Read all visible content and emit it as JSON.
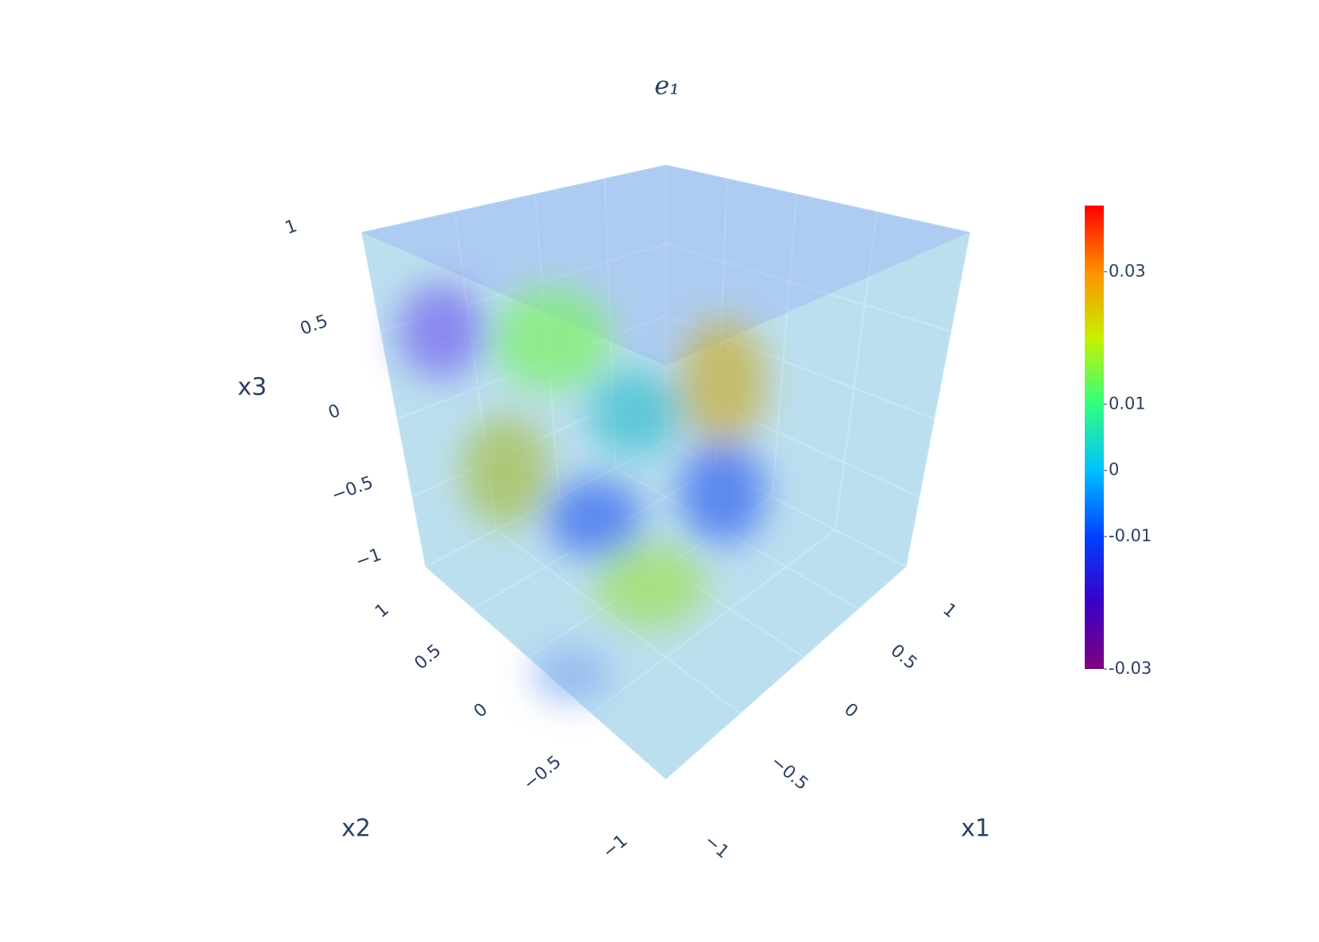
{
  "chart_data": {
    "type": "volume",
    "title": "e₁",
    "xaxis_title": "x1",
    "yaxis_title": "x2",
    "zaxis_title": "x3",
    "xlim": [
      -1,
      1
    ],
    "ylim": [
      -1,
      1
    ],
    "zlim": [
      -1,
      1
    ],
    "xticks": [
      {
        "value": -1,
        "label": "−1"
      },
      {
        "value": -0.5,
        "label": "−0.5"
      },
      0,
      0.5,
      1
    ],
    "yticks": [
      {
        "value": -1,
        "label": "−1"
      },
      {
        "value": -0.5,
        "label": "−0.5"
      },
      0,
      0.5,
      1
    ],
    "zticks": [
      {
        "value": -1,
        "label": "−1"
      },
      {
        "value": -0.5,
        "label": "−0.5"
      },
      0,
      0.5,
      1
    ],
    "colorbar": {
      "lim": [
        -0.03,
        0.04
      ],
      "ticks": [
        -0.03,
        -0.01,
        0,
        0.01,
        0.03
      ],
      "colorscale": [
        "#7f007f",
        "#3a00c8",
        "#0040ff",
        "#00c0ff",
        "#30ff80",
        "#c8f000",
        "#ff9000",
        "#ff0000"
      ]
    },
    "grid": true
  }
}
